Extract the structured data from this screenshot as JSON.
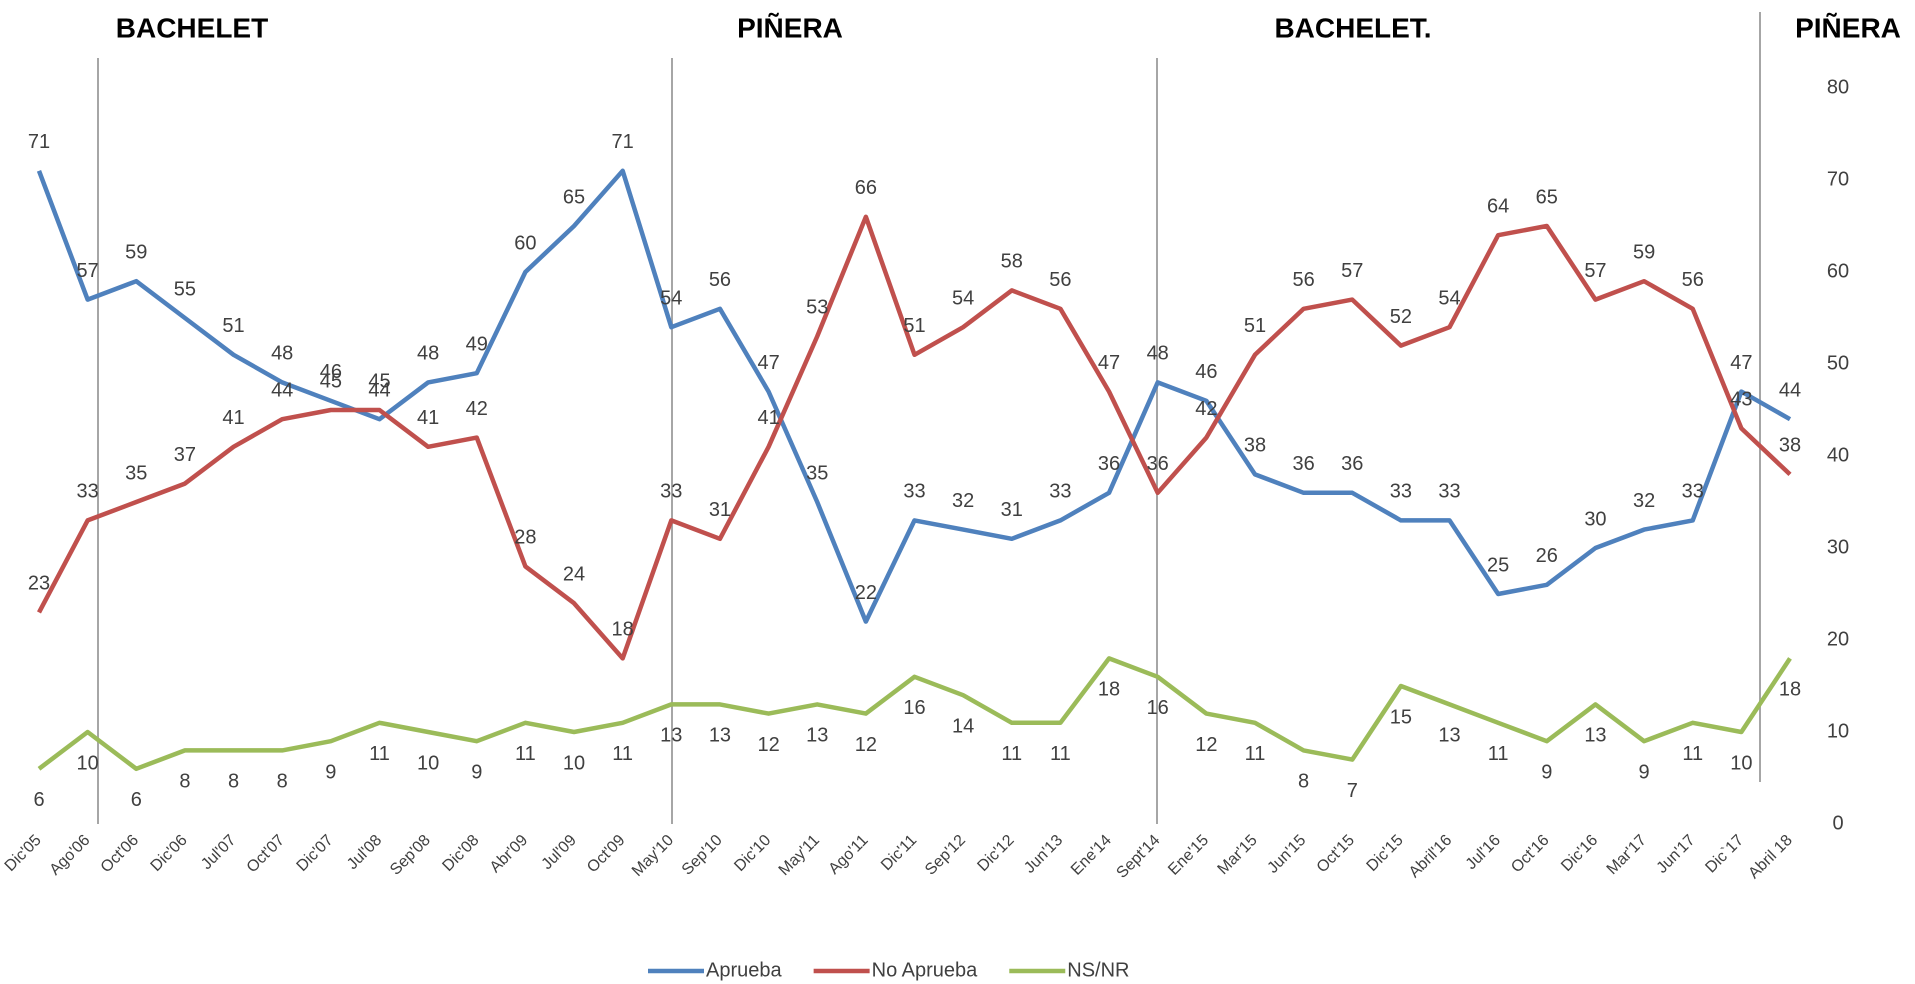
{
  "periods": [
    "BACHELET",
    "PIÑERA",
    "BACHELET.",
    "PIÑERA"
  ],
  "chart_data": {
    "type": "line",
    "categories": [
      "Dic'05",
      "Ago'06",
      "Oct'06",
      "Dic'06",
      "Jul'07",
      "Oct'07",
      "Dic'07",
      "Jul'08",
      "Sep'08",
      "Dic'08",
      "Abr'09",
      "Jul'09",
      "Oct'09",
      "May'10",
      "Sep'10",
      "Dic'10",
      "May'11",
      "Ago'11",
      "Dic'11",
      "Sep'12",
      "Dic'12",
      "Jun'13",
      "Ene'14",
      "Sept'14",
      "Ene'15",
      "Mar'15",
      "Jun'15",
      "Oct'15",
      "Dic'15",
      "Abril'16",
      "Jul'16",
      "Oct'16",
      "Dic'16",
      "Mar'17",
      "Jun'17",
      "Dic`17",
      "Abril 18"
    ],
    "series": [
      {
        "name": "Aprueba",
        "color": "#4f81bd",
        "values": [
          71,
          57,
          59,
          55,
          51,
          48,
          46,
          44,
          48,
          49,
          60,
          65,
          71,
          54,
          56,
          47,
          35,
          22,
          33,
          32,
          31,
          33,
          36,
          48,
          46,
          38,
          36,
          36,
          33,
          33,
          25,
          26,
          30,
          32,
          33,
          47,
          44
        ]
      },
      {
        "name": "No Aprueba",
        "color": "#c0504d",
        "values": [
          23,
          33,
          35,
          37,
          41,
          44,
          45,
          45,
          41,
          42,
          28,
          24,
          18,
          33,
          31,
          41,
          53,
          66,
          51,
          54,
          58,
          56,
          47,
          36,
          42,
          51,
          56,
          57,
          52,
          54,
          64,
          65,
          57,
          59,
          56,
          43,
          38
        ]
      },
      {
        "name": "NS/NR",
        "color": "#9bbb59",
        "values": [
          6,
          10,
          6,
          8,
          8,
          8,
          9,
          11,
          10,
          9,
          11,
          10,
          11,
          13,
          13,
          12,
          13,
          12,
          16,
          14,
          11,
          11,
          18,
          16,
          12,
          11,
          8,
          7,
          15,
          13,
          11,
          9,
          13,
          9,
          11,
          10,
          18
        ]
      }
    ],
    "ylim": [
      0,
      80
    ],
    "yticks": [
      0,
      10,
      20,
      30,
      40,
      50,
      60,
      70,
      80
    ],
    "y_axis_side": "right",
    "grid": false,
    "legend": "bottom"
  }
}
